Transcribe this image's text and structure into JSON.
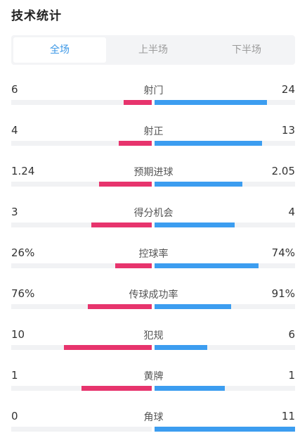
{
  "title": "技术统计",
  "tabs": [
    {
      "label": "全场",
      "active": true
    },
    {
      "label": "上半场",
      "active": false
    },
    {
      "label": "下半场",
      "active": false
    }
  ],
  "colors": {
    "home": "#e7346d",
    "away": "#3c9df0",
    "accent": "#3b97e6"
  },
  "stats": [
    {
      "label": "射门",
      "home": "6",
      "away": "24",
      "home_fill": 0.2,
      "away_fill": 0.8
    },
    {
      "label": "射正",
      "home": "4",
      "away": "13",
      "home_fill": 0.235,
      "away_fill": 0.765
    },
    {
      "label": "预期进球",
      "home": "1.24",
      "away": "2.05",
      "home_fill": 0.377,
      "away_fill": 0.623
    },
    {
      "label": "得分机会",
      "home": "3",
      "away": "4",
      "home_fill": 0.429,
      "away_fill": 0.571
    },
    {
      "label": "控球率",
      "home": "26%",
      "away": "74%",
      "home_fill": 0.26,
      "away_fill": 0.74
    },
    {
      "label": "传球成功率",
      "home": "76%",
      "away": "91%",
      "home_fill": 0.455,
      "away_fill": 0.545
    },
    {
      "label": "犯规",
      "home": "10",
      "away": "6",
      "home_fill": 0.625,
      "away_fill": 0.375
    },
    {
      "label": "黄牌",
      "home": "1",
      "away": "1",
      "home_fill": 0.5,
      "away_fill": 0.5
    },
    {
      "label": "角球",
      "home": "0",
      "away": "11",
      "home_fill": 0.0,
      "away_fill": 1.0
    }
  ]
}
